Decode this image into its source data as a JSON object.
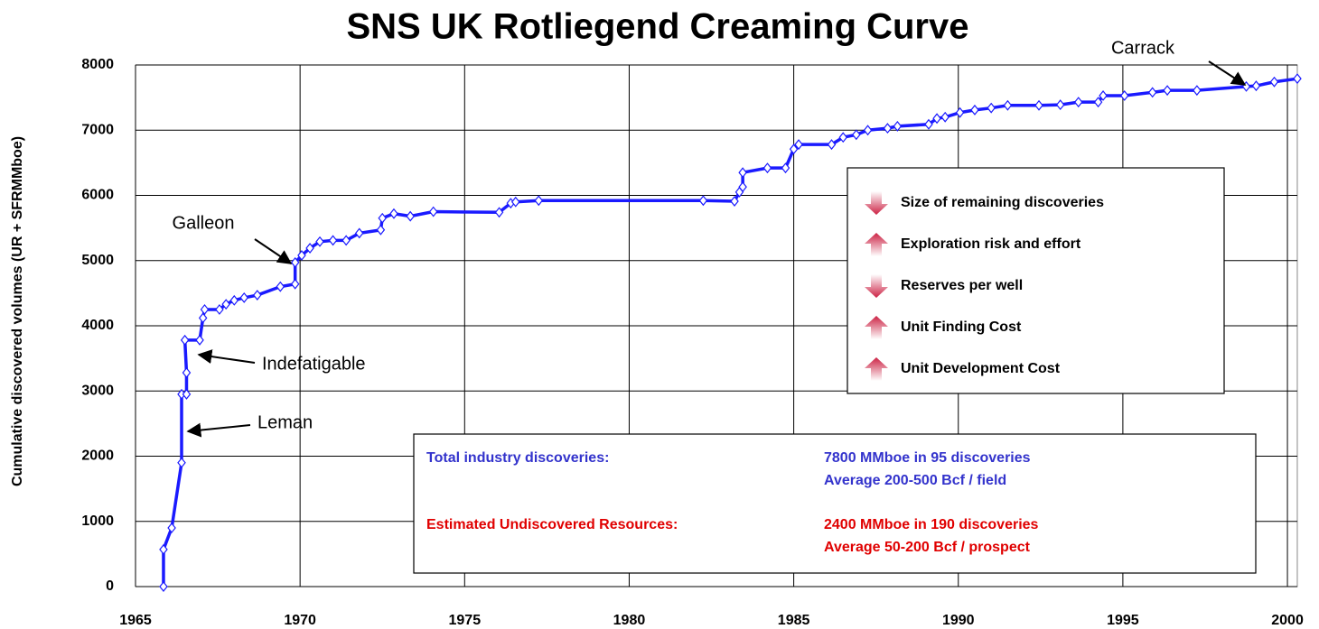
{
  "chart_data": {
    "type": "line",
    "title": "SNS UK Rotliegend Creaming Curve",
    "y_label": "Cumulative discovered volumes (UR + SFRMMboe)",
    "color": "#1a1aff",
    "grid": true,
    "xlim": [
      1965,
      2000.3
    ],
    "ylim": [
      0,
      8000
    ],
    "xticks": [
      1965,
      1970,
      1975,
      1980,
      1985,
      1990,
      1995,
      2000
    ],
    "yticks": [
      0,
      1000,
      2000,
      3000,
      4000,
      5000,
      6000,
      7000,
      8000
    ],
    "x": [
      1965.85,
      1965.85,
      1966.1,
      1966.4,
      1966.4,
      1966.55,
      1966.55,
      1966.5,
      1966.95,
      1967.05,
      1967.1,
      1967.55,
      1967.75,
      1968,
      1968.3,
      1968.7,
      1969.4,
      1969.85,
      1969.85,
      1970.05,
      1970.3,
      1970.6,
      1971,
      1971.4,
      1971.8,
      1972.45,
      1972.5,
      1972.85,
      1973.35,
      1974.05,
      1976.05,
      1976.4,
      1976.55,
      1977.25,
      1982.25,
      1983.2,
      1983.35,
      1983.45,
      1983.45,
      1984.2,
      1984.75,
      1985,
      1985.15,
      1986.15,
      1986.5,
      1986.9,
      1987.25,
      1987.85,
      1988.15,
      1989.1,
      1989.35,
      1989.6,
      1990.05,
      1990.5,
      1991,
      1991.5,
      1992.45,
      1993.1,
      1993.65,
      1994.25,
      1994.4,
      1995.05,
      1995.9,
      1996.35,
      1997.25,
      1998.75,
      1999.05,
      1999.6,
      2000.3
    ],
    "values": [
      0,
      570,
      900,
      1900,
      2950,
      2950,
      3280,
      3780,
      3780,
      4120,
      4250,
      4250,
      4330,
      4390,
      4430,
      4470,
      4600,
      4640,
      4970,
      5080,
      5190,
      5290,
      5310,
      5310,
      5420,
      5470,
      5650,
      5720,
      5680,
      5750,
      5740,
      5880,
      5900,
      5920,
      5920,
      5910,
      6050,
      6130,
      6350,
      6420,
      6420,
      6710,
      6780,
      6780,
      6890,
      6930,
      7000,
      7030,
      7060,
      7090,
      7180,
      7200,
      7270,
      7310,
      7340,
      7380,
      7380,
      7390,
      7430,
      7430,
      7530,
      7530,
      7580,
      7610,
      7610,
      7670,
      7680,
      7740,
      7790
    ],
    "annotations": [
      "Carrack",
      "Galleon",
      "Indefatigable",
      "Leman"
    ],
    "trend_box": [
      {
        "text": "Size of remaining discoveries",
        "direction": "down"
      },
      {
        "text": "Exploration risk and effort",
        "direction": "up"
      },
      {
        "text": "Reserves per well",
        "direction": "down"
      },
      {
        "text": "Unit Finding Cost",
        "direction": "up"
      },
      {
        "text": "Unit Development Cost",
        "direction": "up"
      }
    ],
    "summary": [
      {
        "label": "Total industry discoveries:",
        "lines": [
          "7800 MMboe in 95 discoveries",
          "Average 200-500 Bcf / field"
        ],
        "color": "#3333cc"
      },
      {
        "label": "Estimated Undiscovered Resources:",
        "lines": [
          "2400 MMboe in 190 discoveries",
          "Average 50-200 Bcf / prospect"
        ],
        "color": "#e00000"
      }
    ]
  }
}
